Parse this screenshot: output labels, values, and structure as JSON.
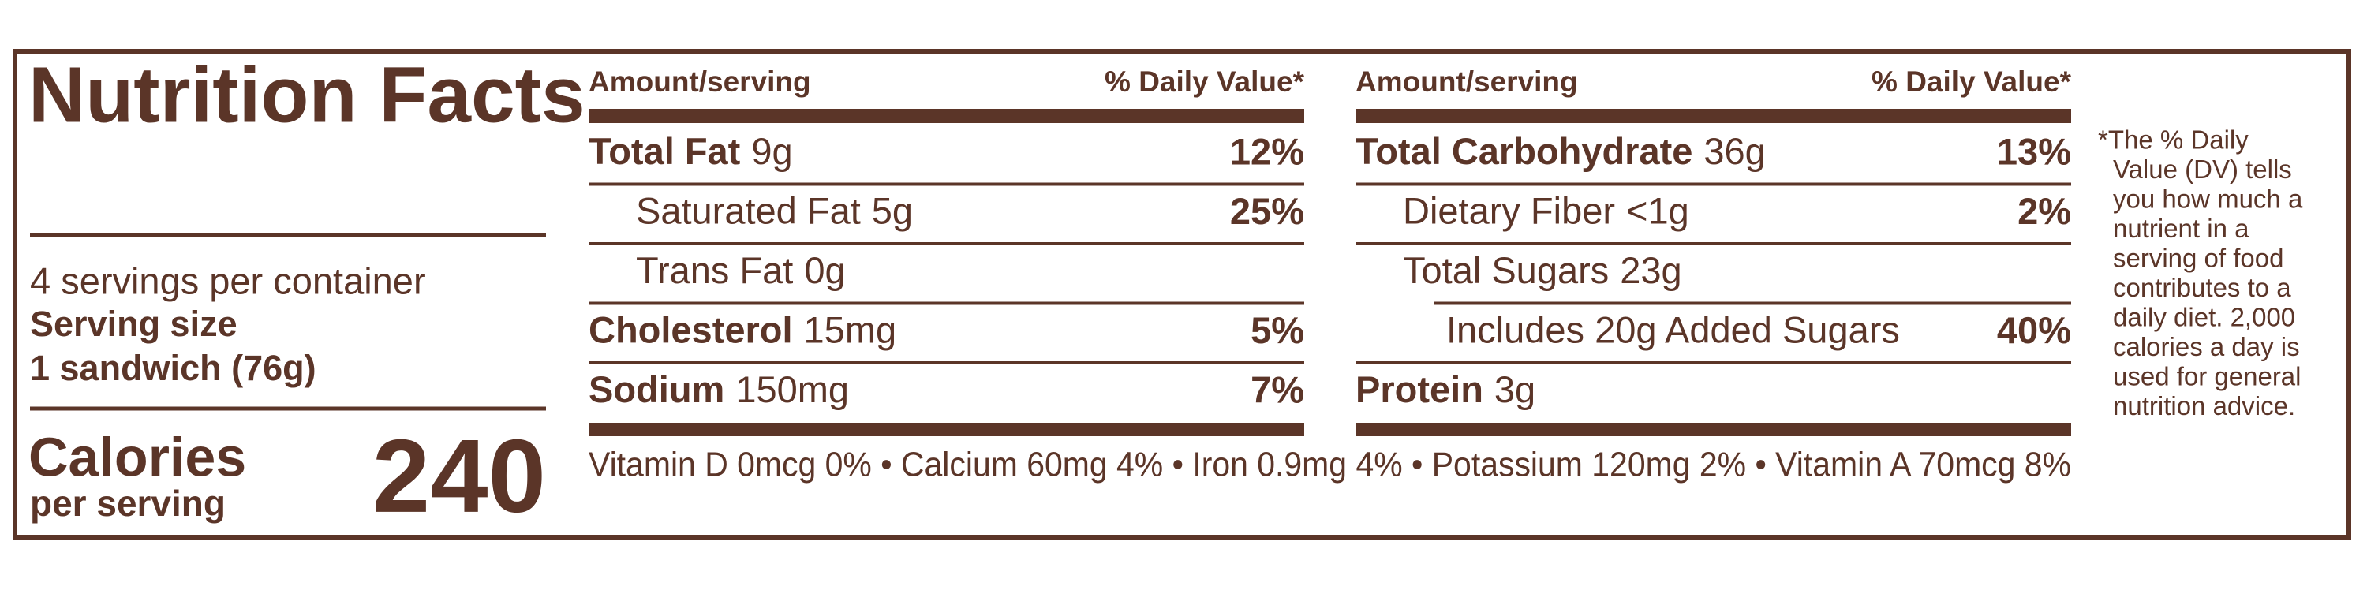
{
  "title": "Nutrition Facts",
  "servings": "4 servings per container",
  "serving_size_label": "Serving size",
  "serving_size": "1 sandwich (76g)",
  "calories_label": "Calories",
  "calories_sub": "per serving",
  "calories": 240,
  "columns": [
    {
      "header_left": "Amount/serving",
      "header_right": "% Daily Value*",
      "rows": [
        {
          "name": "Total Fat",
          "amount": "9g",
          "dv": "12%",
          "level": 0
        },
        {
          "name": "Saturated Fat",
          "amount": "5g",
          "dv": "25%",
          "level": 1
        },
        {
          "name": "Trans Fat",
          "amount": "0g",
          "level": 1
        },
        {
          "name": "Cholesterol",
          "amount": "15mg",
          "dv": "5%",
          "level": 0
        },
        {
          "name": "Sodium",
          "amount": "150mg",
          "dv": "7%",
          "level": 0
        }
      ]
    },
    {
      "header_left": "Amount/serving",
      "header_right": "% Daily Value*",
      "rows": [
        {
          "name": "Total Carbohydrate",
          "amount": "36g",
          "dv": "13%",
          "level": 0
        },
        {
          "name": "Dietary Fiber",
          "amount": "<1g",
          "dv": "2%",
          "level": 1
        },
        {
          "name": "Total Sugars",
          "amount": "23g",
          "level": 1
        },
        {
          "name": "Includes 20g Added Sugars",
          "dv": "40%",
          "level": 2
        },
        {
          "name": "Protein",
          "amount": "3g",
          "level": 0
        }
      ]
    }
  ],
  "vitamins": "Vitamin D 0mcg 0% • Calcium 60mg 4% • Iron 0.9mg 4% • Potassium 120mg 2% • Vitamin A 70mcg 8%",
  "footnote": [
    "*The % Daily",
    "Value (DV) tells",
    "you how much a",
    "nutrient in a",
    "serving of food",
    "contributes to a",
    "daily diet. 2,000",
    "calories a day is",
    "used for general",
    "nutrition advice."
  ]
}
